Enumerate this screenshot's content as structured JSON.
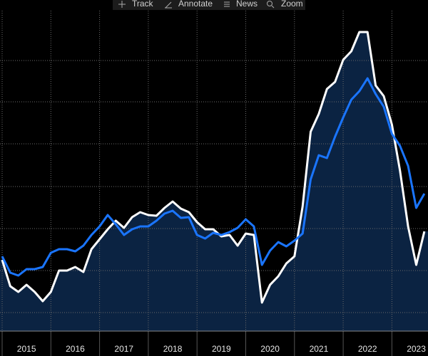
{
  "toolbar": [
    "Track",
    "Annotate",
    "News",
    "Zoom"
  ],
  "chart_data": {
    "type": "line",
    "x": [
      2015,
      2015.167,
      2015.333,
      2015.5,
      2015.667,
      2015.833,
      2016,
      2016.167,
      2016.333,
      2016.5,
      2016.667,
      2016.833,
      2017,
      2017.167,
      2017.333,
      2017.5,
      2017.667,
      2017.833,
      2018,
      2018.167,
      2018.333,
      2018.5,
      2018.667,
      2018.833,
      2019,
      2019.167,
      2019.333,
      2019.5,
      2019.667,
      2019.833,
      2020,
      2020.167,
      2020.333,
      2020.5,
      2020.667,
      2020.833,
      2021,
      2021.167,
      2021.333,
      2021.5,
      2021.667,
      2021.833,
      2022,
      2022.167,
      2022.333,
      2022.5,
      2022.667,
      2022.833,
      2023,
      2023.167,
      2023.333,
      2023.5,
      2023.667
    ],
    "series": [
      {
        "color": "#ffffff",
        "fill": "#0b2342",
        "values": [
          100,
          63,
          55,
          65,
          55,
          42,
          55,
          85,
          85,
          90,
          83,
          115,
          129,
          143,
          155,
          145,
          160,
          167,
          163,
          162,
          173,
          182,
          172,
          167,
          153,
          143,
          143,
          133,
          135,
          120,
          137,
          135,
          40,
          65,
          77,
          95,
          105,
          175,
          280,
          305,
          340,
          350,
          381,
          393,
          420,
          420,
          345,
          330,
          290,
          225,
          147,
          93,
          140
        ]
      },
      {
        "color": "#1a75ff",
        "values": [
          105,
          82,
          78,
          87,
          87,
          90,
          110,
          115,
          115,
          112,
          120,
          135,
          147,
          163,
          150,
          135,
          143,
          147,
          147,
          155,
          165,
          169,
          159,
          160,
          135,
          130,
          138,
          135,
          139,
          145,
          157,
          147,
          93,
          113,
          125,
          119,
          127,
          137,
          213,
          247,
          243,
          273,
          300,
          325,
          337,
          355,
          333,
          315,
          277,
          260,
          232,
          173,
          193
        ]
      }
    ],
    "xlim": [
      2014.956,
      2023.741
    ],
    "xticks": [
      2015,
      2016,
      2017,
      2018,
      2019,
      2020,
      2021,
      2022,
      2023
    ],
    "ylim": [
      0,
      450
    ],
    "ygrid": [
      26,
      85,
      144,
      203,
      263,
      322,
      380
    ],
    "grid": true
  }
}
